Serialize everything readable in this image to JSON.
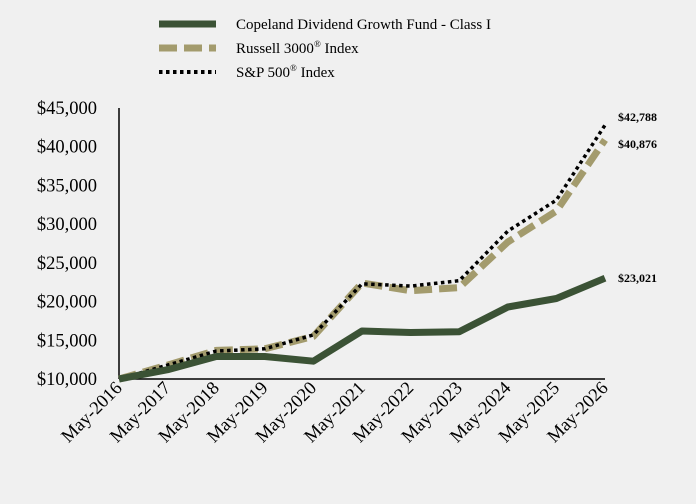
{
  "chart_data": {
    "type": "line",
    "categories": [
      "May-2016",
      "May-2017",
      "May-2018",
      "May-2019",
      "May-2020",
      "May-2021",
      "May-2022",
      "May-2023",
      "May-2024",
      "May-2025",
      "May-2026"
    ],
    "ylim": [
      10000,
      45000
    ],
    "yticks": [
      "$10,000",
      "$15,000",
      "$20,000",
      "$25,000",
      "$30,000",
      "$35,000",
      "$40,000",
      "$45,000"
    ],
    "ytick_values": [
      10000,
      15000,
      20000,
      25000,
      30000,
      35000,
      40000,
      45000
    ],
    "series": [
      {
        "name": "Copeland Dividend Growth Fund - Class I",
        "name_sup": "",
        "name_suffix": "",
        "color": "#3b5235",
        "style": "solid",
        "values": [
          10000,
          11200,
          12900,
          12900,
          12300,
          16200,
          16000,
          16100,
          19300,
          20400,
          23021
        ],
        "end_label": "$23,021"
      },
      {
        "name": "Russell 3000",
        "name_sup": "®",
        "name_suffix": " Index",
        "color": "#a39b6d",
        "style": "dashed",
        "values": [
          10000,
          11800,
          13700,
          13900,
          15500,
          22400,
          21400,
          21800,
          27700,
          31700,
          40876
        ],
        "end_label": "$40,876"
      },
      {
        "name": "S&P 500",
        "name_sup": "®",
        "name_suffix": " Index",
        "color": "#000000",
        "style": "dotted",
        "values": [
          10000,
          11800,
          13600,
          13900,
          15700,
          22300,
          22000,
          22700,
          29100,
          33100,
          42788
        ],
        "end_label": "$42,788"
      }
    ],
    "legend_placement": "top-center",
    "grid": false
  }
}
